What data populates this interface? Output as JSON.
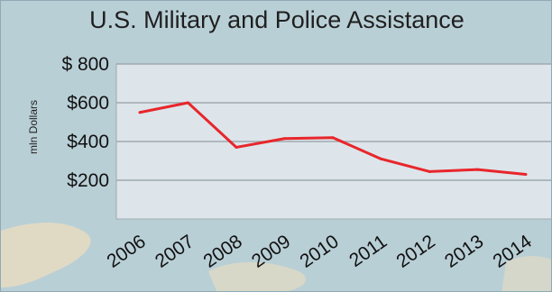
{
  "chart_data": {
    "type": "line",
    "title": "U.S. Military and Police Assistance",
    "xlabel": "",
    "ylabel": "mln Dollars",
    "x": [
      "2006",
      "2007",
      "2008",
      "2009",
      "2010",
      "2011",
      "2012",
      "2013",
      "2014"
    ],
    "series": [
      {
        "values": [
          550,
          600,
          370,
          415,
          420,
          310,
          245,
          255,
          230
        ]
      }
    ],
    "ylim": [
      0,
      800
    ],
    "yticks": [
      200,
      400,
      600,
      800
    ],
    "ytick_labels": [
      "$200",
      "$400",
      "$600",
      "$ 800"
    ],
    "grid": true,
    "legend": "none",
    "colors": {
      "line": "#e8262b",
      "plot_background": "#dde5ea",
      "gridline": "#9fa9b0",
      "page_background": "#b9cfd6"
    }
  }
}
